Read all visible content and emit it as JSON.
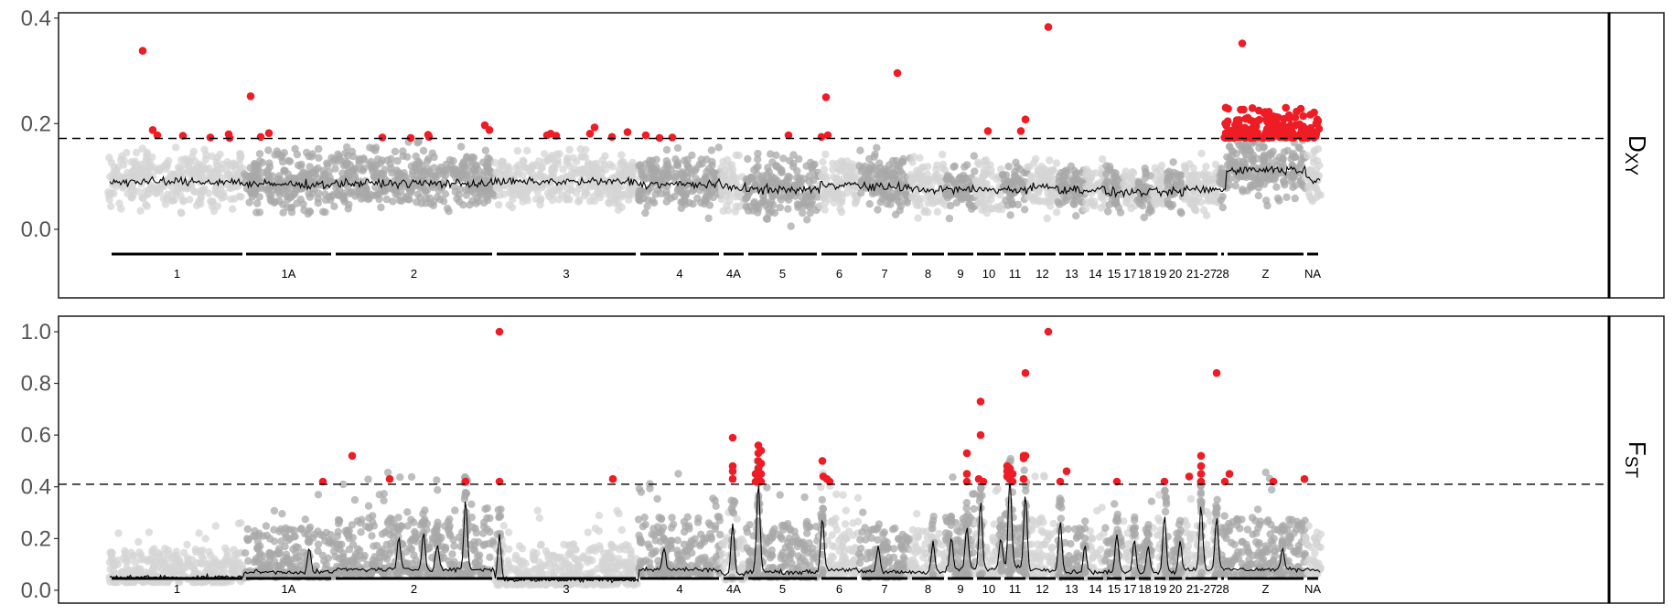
{
  "chart_data": [
    {
      "type": "scatter",
      "strip_label": {
        "main": "D",
        "sub": "XY"
      },
      "ylim": [
        -0.13,
        0.41
      ],
      "yticks": [
        0.0,
        0.2,
        0.4
      ],
      "ytick_labels": [
        "0.0",
        "0.2",
        "0.4"
      ],
      "threshold": 0.172,
      "outliers": [
        {
          "x": 156,
          "y": 0.338
        },
        {
          "x": 167,
          "y": 0.188
        },
        {
          "x": 172,
          "y": 0.178
        },
        {
          "x": 200,
          "y": 0.177
        },
        {
          "x": 230,
          "y": 0.174
        },
        {
          "x": 250,
          "y": 0.18
        },
        {
          "x": 251,
          "y": 0.173
        },
        {
          "x": 274,
          "y": 0.252
        },
        {
          "x": 285,
          "y": 0.175
        },
        {
          "x": 294,
          "y": 0.182
        },
        {
          "x": 418,
          "y": 0.174
        },
        {
          "x": 449,
          "y": 0.173
        },
        {
          "x": 468,
          "y": 0.179
        },
        {
          "x": 469,
          "y": 0.175
        },
        {
          "x": 530,
          "y": 0.197
        },
        {
          "x": 535,
          "y": 0.188
        },
        {
          "x": 598,
          "y": 0.178
        },
        {
          "x": 602,
          "y": 0.181
        },
        {
          "x": 608,
          "y": 0.177
        },
        {
          "x": 645,
          "y": 0.181
        },
        {
          "x": 650,
          "y": 0.193
        },
        {
          "x": 669,
          "y": 0.175
        },
        {
          "x": 686,
          "y": 0.184
        },
        {
          "x": 706,
          "y": 0.178
        },
        {
          "x": 721,
          "y": 0.173
        },
        {
          "x": 735,
          "y": 0.174
        },
        {
          "x": 862,
          "y": 0.178
        },
        {
          "x": 898,
          "y": 0.175
        },
        {
          "x": 903,
          "y": 0.25
        },
        {
          "x": 905,
          "y": 0.178
        },
        {
          "x": 981,
          "y": 0.296
        },
        {
          "x": 1080,
          "y": 0.186
        },
        {
          "x": 1116,
          "y": 0.186
        },
        {
          "x": 1121,
          "y": 0.208
        },
        {
          "x": 1146,
          "y": 0.383
        },
        {
          "x": 1358,
          "y": 0.352
        }
      ],
      "outlier_cluster": {
        "x_range": [
          1338,
          1443
        ],
        "y_range": [
          0.173,
          0.232
        ],
        "count": 170
      },
      "background_bands": [
        {
          "x": [
            118,
            267
          ],
          "mean": 0.095,
          "spread": 0.075,
          "shade": "light"
        },
        {
          "x": [
            267,
            365
          ],
          "mean": 0.09,
          "spread": 0.08,
          "shade": "dark"
        },
        {
          "x": [
            365,
            541
          ],
          "mean": 0.092,
          "spread": 0.085,
          "shade": "dark"
        },
        {
          "x": [
            541,
            698
          ],
          "mean": 0.095,
          "spread": 0.075,
          "shade": "light"
        },
        {
          "x": [
            698,
            788
          ],
          "mean": 0.09,
          "spread": 0.08,
          "shade": "dark"
        },
        {
          "x": [
            788,
            815
          ],
          "mean": 0.085,
          "spread": 0.07,
          "shade": "light"
        },
        {
          "x": [
            815,
            896
          ],
          "mean": 0.08,
          "spread": 0.085,
          "shade": "dark"
        },
        {
          "x": [
            896,
            939
          ],
          "mean": 0.09,
          "spread": 0.075,
          "shade": "light"
        },
        {
          "x": [
            939,
            995
          ],
          "mean": 0.085,
          "spread": 0.08,
          "shade": "dark"
        },
        {
          "x": [
            995,
            1034
          ],
          "mean": 0.08,
          "spread": 0.075,
          "shade": "light"
        },
        {
          "x": [
            1034,
            1066
          ],
          "mean": 0.08,
          "spread": 0.075,
          "shade": "dark"
        },
        {
          "x": [
            1066,
            1096
          ],
          "mean": 0.08,
          "spread": 0.07,
          "shade": "light"
        },
        {
          "x": [
            1096,
            1123
          ],
          "mean": 0.08,
          "spread": 0.075,
          "shade": "dark"
        },
        {
          "x": [
            1123,
            1156
          ],
          "mean": 0.085,
          "spread": 0.075,
          "shade": "light"
        },
        {
          "x": [
            1156,
            1187
          ],
          "mean": 0.08,
          "spread": 0.07,
          "shade": "dark"
        },
        {
          "x": [
            1187,
            1208
          ],
          "mean": 0.08,
          "spread": 0.065,
          "shade": "light"
        },
        {
          "x": [
            1208,
            1228
          ],
          "mean": 0.075,
          "spread": 0.07,
          "shade": "dark"
        },
        {
          "x": [
            1228,
            1243
          ],
          "mean": 0.075,
          "spread": 0.065,
          "shade": "light"
        },
        {
          "x": [
            1243,
            1260
          ],
          "mean": 0.075,
          "spread": 0.065,
          "shade": "dark"
        },
        {
          "x": [
            1260,
            1276
          ],
          "mean": 0.075,
          "spread": 0.065,
          "shade": "light"
        },
        {
          "x": [
            1276,
            1294
          ],
          "mean": 0.075,
          "spread": 0.065,
          "shade": "dark"
        },
        {
          "x": [
            1294,
            1333
          ],
          "mean": 0.08,
          "spread": 0.075,
          "shade": "light"
        },
        {
          "x": [
            1333,
            1340
          ],
          "mean": 0.08,
          "spread": 0.07,
          "shade": "dark"
        },
        {
          "x": [
            1340,
            1427
          ],
          "mean": 0.118,
          "spread": 0.085,
          "shade": "dark"
        },
        {
          "x": [
            1427,
            1444
          ],
          "mean": 0.1,
          "spread": 0.08,
          "shade": "light"
        }
      ]
    },
    {
      "type": "scatter",
      "strip_label": {
        "main": "F",
        "sub": "ST"
      },
      "ylim": [
        -0.05,
        1.06
      ],
      "yticks": [
        0.0,
        0.2,
        0.4,
        0.6,
        0.8,
        1.0
      ],
      "ytick_labels": [
        "0.0",
        "0.2",
        "0.4",
        "0.6",
        "0.8",
        "1.0"
      ],
      "threshold": 0.41,
      "outliers": [
        {
          "x": 353,
          "y": 0.42
        },
        {
          "x": 385,
          "y": 0.52
        },
        {
          "x": 426,
          "y": 0.43
        },
        {
          "x": 509,
          "y": 0.42
        },
        {
          "x": 546,
          "y": 1.0
        },
        {
          "x": 546,
          "y": 0.42
        },
        {
          "x": 670,
          "y": 0.43
        },
        {
          "x": 801,
          "y": 0.59
        },
        {
          "x": 801,
          "y": 0.48
        },
        {
          "x": 801,
          "y": 0.46
        },
        {
          "x": 801,
          "y": 0.43
        },
        {
          "x": 829,
          "y": 0.56
        },
        {
          "x": 829,
          "y": 0.53
        },
        {
          "x": 829,
          "y": 0.5
        },
        {
          "x": 829,
          "y": 0.47
        },
        {
          "x": 829,
          "y": 0.44
        },
        {
          "x": 829,
          "y": 0.42
        },
        {
          "x": 832,
          "y": 0.54
        },
        {
          "x": 832,
          "y": 0.49
        },
        {
          "x": 832,
          "y": 0.45
        },
        {
          "x": 832,
          "y": 0.42
        },
        {
          "x": 826,
          "y": 0.45
        },
        {
          "x": 826,
          "y": 0.42
        },
        {
          "x": 899,
          "y": 0.5
        },
        {
          "x": 900,
          "y": 0.44
        },
        {
          "x": 904,
          "y": 0.43
        },
        {
          "x": 907,
          "y": 0.42
        },
        {
          "x": 1057,
          "y": 0.53
        },
        {
          "x": 1057,
          "y": 0.45
        },
        {
          "x": 1057,
          "y": 0.42
        },
        {
          "x": 1072,
          "y": 0.73
        },
        {
          "x": 1072,
          "y": 0.6
        },
        {
          "x": 1070,
          "y": 0.43
        },
        {
          "x": 1075,
          "y": 0.42
        },
        {
          "x": 1101,
          "y": 0.48
        },
        {
          "x": 1101,
          "y": 0.46
        },
        {
          "x": 1101,
          "y": 0.44
        },
        {
          "x": 1104,
          "y": 0.47
        },
        {
          "x": 1104,
          "y": 0.43
        },
        {
          "x": 1107,
          "y": 0.45
        },
        {
          "x": 1107,
          "y": 0.42
        },
        {
          "x": 1119,
          "y": 0.52
        },
        {
          "x": 1119,
          "y": 0.51
        },
        {
          "x": 1119,
          "y": 0.43
        },
        {
          "x": 1121,
          "y": 0.84
        },
        {
          "x": 1121,
          "y": 0.52
        },
        {
          "x": 1146,
          "y": 1.0
        },
        {
          "x": 1159,
          "y": 0.42
        },
        {
          "x": 1166,
          "y": 0.46
        },
        {
          "x": 1221,
          "y": 0.42
        },
        {
          "x": 1273,
          "y": 0.42
        },
        {
          "x": 1300,
          "y": 0.44
        },
        {
          "x": 1313,
          "y": 0.52
        },
        {
          "x": 1313,
          "y": 0.48
        },
        {
          "x": 1313,
          "y": 0.45
        },
        {
          "x": 1313,
          "y": 0.42
        },
        {
          "x": 1330,
          "y": 0.84
        },
        {
          "x": 1339,
          "y": 0.42
        },
        {
          "x": 1344,
          "y": 0.45
        },
        {
          "x": 1392,
          "y": 0.42
        },
        {
          "x": 1426,
          "y": 0.43
        }
      ],
      "peaks": [
        {
          "x": 509,
          "h": 0.27
        },
        {
          "x": 546,
          "h": 0.17
        },
        {
          "x": 801,
          "h": 0.2
        },
        {
          "x": 829,
          "h": 0.35
        },
        {
          "x": 899,
          "h": 0.2
        },
        {
          "x": 1057,
          "h": 0.17
        },
        {
          "x": 1072,
          "h": 0.26
        },
        {
          "x": 1104,
          "h": 0.35
        },
        {
          "x": 1121,
          "h": 0.28
        },
        {
          "x": 1159,
          "h": 0.2
        },
        {
          "x": 1221,
          "h": 0.15
        },
        {
          "x": 1273,
          "h": 0.22
        },
        {
          "x": 1313,
          "h": 0.25
        },
        {
          "x": 1330,
          "h": 0.2
        },
        {
          "x": 960,
          "h": 0.1
        },
        {
          "x": 1020,
          "h": 0.12
        },
        {
          "x": 1186,
          "h": 0.1
        },
        {
          "x": 1240,
          "h": 0.12
        },
        {
          "x": 1255,
          "h": 0.1
        },
        {
          "x": 1290,
          "h": 0.12
        },
        {
          "x": 1040,
          "h": 0.12
        },
        {
          "x": 1094,
          "h": 0.12
        },
        {
          "x": 436,
          "h": 0.12
        },
        {
          "x": 463,
          "h": 0.14
        },
        {
          "x": 478,
          "h": 0.1
        },
        {
          "x": 338,
          "h": 0.09
        },
        {
          "x": 726,
          "h": 0.08
        },
        {
          "x": 1402,
          "h": 0.08
        }
      ],
      "background_bands": [
        {
          "x": [
            118,
            267
          ],
          "mean": 0.07,
          "spread": 0.08,
          "shade": "light"
        },
        {
          "x": [
            267,
            365
          ],
          "mean": 0.09,
          "spread": 0.12,
          "shade": "dark"
        },
        {
          "x": [
            365,
            541
          ],
          "mean": 0.1,
          "spread": 0.14,
          "shade": "dark"
        },
        {
          "x": [
            541,
            698
          ],
          "mean": 0.06,
          "spread": 0.1,
          "shade": "light"
        },
        {
          "x": [
            698,
            788
          ],
          "mean": 0.1,
          "spread": 0.14,
          "shade": "dark"
        },
        {
          "x": [
            788,
            815
          ],
          "mean": 0.08,
          "spread": 0.1,
          "shade": "light"
        },
        {
          "x": [
            815,
            896
          ],
          "mean": 0.09,
          "spread": 0.13,
          "shade": "dark"
        },
        {
          "x": [
            896,
            939
          ],
          "mean": 0.1,
          "spread": 0.14,
          "shade": "light"
        },
        {
          "x": [
            939,
            995
          ],
          "mean": 0.09,
          "spread": 0.12,
          "shade": "dark"
        },
        {
          "x": [
            995,
            1034
          ],
          "mean": 0.09,
          "spread": 0.12,
          "shade": "light"
        },
        {
          "x": [
            1034,
            1066
          ],
          "mean": 0.1,
          "spread": 0.14,
          "shade": "dark"
        },
        {
          "x": [
            1066,
            1096
          ],
          "mean": 0.1,
          "spread": 0.14,
          "shade": "light"
        },
        {
          "x": [
            1096,
            1123
          ],
          "mean": 0.11,
          "spread": 0.15,
          "shade": "dark"
        },
        {
          "x": [
            1123,
            1156
          ],
          "mean": 0.1,
          "spread": 0.14,
          "shade": "light"
        },
        {
          "x": [
            1156,
            1187
          ],
          "mean": 0.09,
          "spread": 0.13,
          "shade": "dark"
        },
        {
          "x": [
            1187,
            1208
          ],
          "mean": 0.09,
          "spread": 0.12,
          "shade": "light"
        },
        {
          "x": [
            1208,
            1228
          ],
          "mean": 0.09,
          "spread": 0.12,
          "shade": "dark"
        },
        {
          "x": [
            1228,
            1243
          ],
          "mean": 0.09,
          "spread": 0.12,
          "shade": "light"
        },
        {
          "x": [
            1243,
            1260
          ],
          "mean": 0.09,
          "spread": 0.12,
          "shade": "dark"
        },
        {
          "x": [
            1260,
            1276
          ],
          "mean": 0.09,
          "spread": 0.12,
          "shade": "light"
        },
        {
          "x": [
            1276,
            1294
          ],
          "mean": 0.09,
          "spread": 0.12,
          "shade": "dark"
        },
        {
          "x": [
            1294,
            1333
          ],
          "mean": 0.1,
          "spread": 0.13,
          "shade": "light"
        },
        {
          "x": [
            1333,
            1340
          ],
          "mean": 0.1,
          "spread": 0.12,
          "shade": "dark"
        },
        {
          "x": [
            1340,
            1427
          ],
          "mean": 0.1,
          "spread": 0.14,
          "shade": "dark"
        },
        {
          "x": [
            1427,
            1444
          ],
          "mean": 0.1,
          "spread": 0.12,
          "shade": "light"
        }
      ]
    }
  ],
  "chromosomes": [
    {
      "label": "1",
      "start": 122,
      "end": 265
    },
    {
      "label": "1A",
      "start": 269,
      "end": 362
    },
    {
      "label": "2",
      "start": 367,
      "end": 538
    },
    {
      "label": "3",
      "start": 543,
      "end": 695
    },
    {
      "label": "4",
      "start": 700,
      "end": 786
    },
    {
      "label": "4A",
      "start": 791,
      "end": 813
    },
    {
      "label": "5",
      "start": 818,
      "end": 893
    },
    {
      "label": "6",
      "start": 898,
      "end": 937
    },
    {
      "label": "7",
      "start": 942,
      "end": 992
    },
    {
      "label": "8",
      "start": 997,
      "end": 1032
    },
    {
      "label": "9",
      "start": 1036,
      "end": 1064
    },
    {
      "label": "10",
      "start": 1068,
      "end": 1094
    },
    {
      "label": "11",
      "start": 1098,
      "end": 1121
    },
    {
      "label": "12",
      "start": 1125,
      "end": 1154
    },
    {
      "label": "13",
      "start": 1158,
      "end": 1185
    },
    {
      "label": "14",
      "start": 1189,
      "end": 1206
    },
    {
      "label": "15",
      "start": 1210,
      "end": 1226
    },
    {
      "label": "17",
      "start": 1230,
      "end": 1241
    },
    {
      "label": "18",
      "start": 1245,
      "end": 1258
    },
    {
      "label": "19",
      "start": 1262,
      "end": 1274
    },
    {
      "label": "20",
      "start": 1278,
      "end": 1292
    },
    {
      "label": "21-27",
      "start": 1296,
      "end": 1331
    },
    {
      "label": "28",
      "start": 1335,
      "end": 1338
    },
    {
      "label": "Z",
      "start": 1342,
      "end": 1425
    },
    {
      "label": "NA",
      "start": 1429,
      "end": 1441
    }
  ],
  "colors": {
    "outlier": "#ee1c25",
    "point_light": "#d4d4d4",
    "point_dark": "#a8a8a8",
    "smooth_line": "#000000",
    "threshold_line": "#000000",
    "axis_text": "#555555"
  }
}
